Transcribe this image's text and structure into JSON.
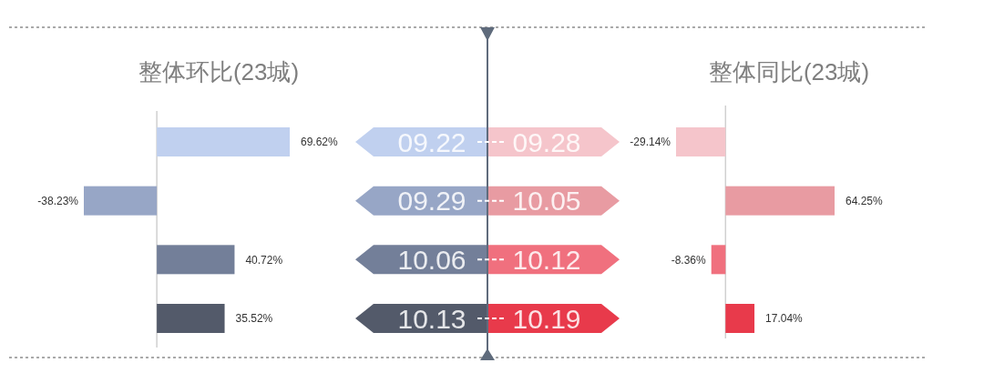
{
  "chart_data": [
    {
      "type": "bar",
      "orientation": "horizontal",
      "title": "整体环比(23城)",
      "categories": [
        "09.22",
        "09.29",
        "10.06",
        "10.13"
      ],
      "values": [
        69.62,
        -38.23,
        40.72,
        35.52
      ],
      "colors": [
        "#c0d0ef",
        "#97a6c6",
        "#737f99",
        "#535a6a"
      ],
      "value_labels": [
        "69.62%",
        "-38.23%",
        "40.72%",
        "35.52%"
      ]
    },
    {
      "type": "bar",
      "orientation": "horizontal",
      "title": "整体同比(23城)",
      "categories": [
        "09.28",
        "10.05",
        "10.12",
        "10.19"
      ],
      "values": [
        -29.14,
        64.25,
        -8.36,
        17.04
      ],
      "colors": [
        "#f5c5cb",
        "#e89ba2",
        "#f0707e",
        "#e83a4b"
      ],
      "value_labels": [
        "-29.14%",
        "64.25%",
        "-8.36%",
        "17.04%"
      ]
    }
  ]
}
